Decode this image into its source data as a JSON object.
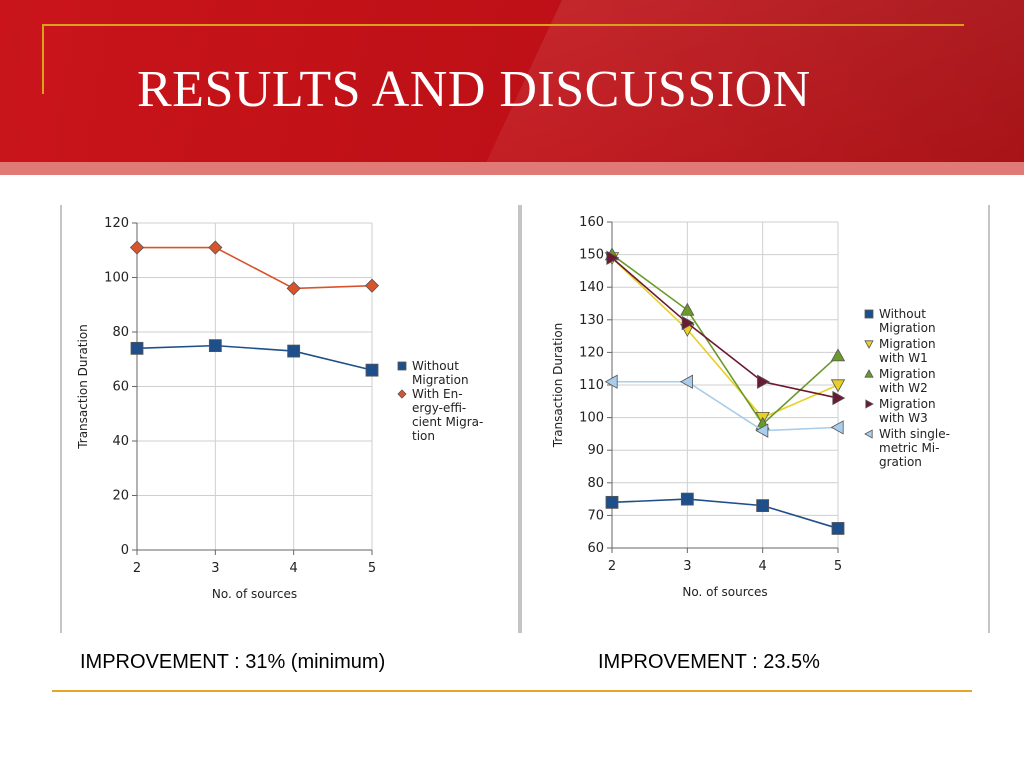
{
  "slide": {
    "title": "RESULTS AND DISCUSSION",
    "captions": [
      "IMPROVEMENT : 31% (minimum)",
      "IMPROVEMENT : 23.5%"
    ],
    "colors": {
      "header_red": "#c9141b",
      "gold": "#d8a21a",
      "rule": "#e6a52a"
    }
  },
  "chart_data": [
    {
      "type": "line",
      "categories": [
        "2",
        "3",
        "4",
        "5"
      ],
      "xlabel": "No. of sources",
      "ylabel": "Transaction Duration",
      "ylim": [
        0,
        120
      ],
      "yticks": [
        0,
        20,
        40,
        60,
        80,
        100,
        120
      ],
      "grid": true,
      "legend": "right",
      "series": [
        {
          "name": "Without Migration",
          "legend_lines": [
            "Without",
            "Migration"
          ],
          "values": [
            74,
            75,
            73,
            66
          ],
          "color": "#1f4f8a",
          "marker": "square"
        },
        {
          "name": "With Energy-efficient Migration",
          "legend_lines": [
            "With En-",
            "ergy-effi-",
            "cient Migra-",
            "tion"
          ],
          "values": [
            111,
            111,
            96,
            97
          ],
          "color": "#d9542b",
          "marker": "diamond"
        }
      ]
    },
    {
      "type": "line",
      "categories": [
        "2",
        "3",
        "4",
        "5"
      ],
      "xlabel": "No. of sources",
      "ylabel": "Transaction Duration",
      "ylim": [
        60,
        160
      ],
      "yticks": [
        60,
        70,
        80,
        90,
        100,
        110,
        120,
        130,
        140,
        150,
        160
      ],
      "grid": true,
      "legend": "right",
      "series": [
        {
          "name": "Without Migration",
          "legend_lines": [
            "Without",
            "Migration"
          ],
          "values": [
            74,
            75,
            73,
            66
          ],
          "color": "#1f4f8a",
          "marker": "square"
        },
        {
          "name": "Migration with W1",
          "legend_lines": [
            "Migration",
            "with W1"
          ],
          "values": [
            149,
            127,
            100,
            110
          ],
          "color": "#e8cf2a",
          "marker": "triangle-down"
        },
        {
          "name": "Migration with W2",
          "legend_lines": [
            "Migration",
            "with W2"
          ],
          "values": [
            150,
            133,
            98,
            119
          ],
          "color": "#6b9a2a",
          "marker": "triangle-up"
        },
        {
          "name": "Migration with W3",
          "legend_lines": [
            "Migration",
            "with W3"
          ],
          "values": [
            149,
            129,
            111,
            106
          ],
          "color": "#6a1a32",
          "marker": "triangle-right"
        },
        {
          "name": "With single-metric Migration",
          "legend_lines": [
            "With single-",
            "metric Mi-",
            "gration"
          ],
          "values": [
            111,
            111,
            96,
            97
          ],
          "color": "#a9cdea",
          "marker": "triangle-left"
        }
      ]
    }
  ]
}
